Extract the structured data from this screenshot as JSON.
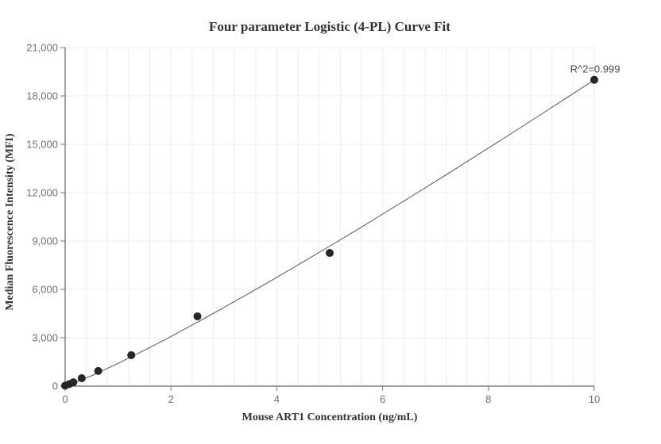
{
  "chart_data": {
    "type": "scatter",
    "title": "Four parameter Logistic (4-PL) Curve Fit",
    "xlabel": "Mouse ART1 Concentration (ng/mL)",
    "ylabel": "Median Fluorescence Intensity (MFI)",
    "annotation": "R^2=0.999",
    "xlim": [
      0,
      10
    ],
    "ylim": [
      0,
      21000
    ],
    "x_ticks": [
      0,
      2,
      4,
      6,
      8,
      10
    ],
    "y_ticks": [
      0,
      3000,
      6000,
      9000,
      12000,
      15000,
      18000,
      21000
    ],
    "x_minor_grid_step": 0.4,
    "grid": true,
    "legend": false,
    "points": [
      {
        "x": 0,
        "y": 30
      },
      {
        "x": 0.078,
        "y": 130
      },
      {
        "x": 0.156,
        "y": 240
      },
      {
        "x": 0.313,
        "y": 490
      },
      {
        "x": 0.625,
        "y": 940
      },
      {
        "x": 1.25,
        "y": 1920
      },
      {
        "x": 2.5,
        "y": 4330
      },
      {
        "x": 5,
        "y": 8260
      },
      {
        "x": 10,
        "y": 19000
      }
    ],
    "fit_curve": [
      [
        0,
        0
      ],
      [
        0.5,
        640
      ],
      [
        1,
        1410
      ],
      [
        1.5,
        2230
      ],
      [
        2,
        3080
      ],
      [
        2.5,
        3970
      ],
      [
        3,
        4880
      ],
      [
        3.5,
        5800
      ],
      [
        4,
        6750
      ],
      [
        4.5,
        7710
      ],
      [
        5,
        8680
      ],
      [
        5.5,
        9660
      ],
      [
        6,
        10670
      ],
      [
        6.5,
        11680
      ],
      [
        7,
        12700
      ],
      [
        7.5,
        13730
      ],
      [
        8,
        14770
      ],
      [
        8.5,
        15810
      ],
      [
        9,
        16870
      ],
      [
        9.5,
        17930
      ],
      [
        10,
        19000
      ]
    ],
    "colors": {
      "point": "#262626",
      "line": "#555555",
      "grid": "#e9edf5",
      "axis": "#444444",
      "tick": "#777777",
      "tick_label": "#707070",
      "title": "#333333",
      "annotation": "#4a4a4a",
      "background": "#ffffff"
    }
  }
}
